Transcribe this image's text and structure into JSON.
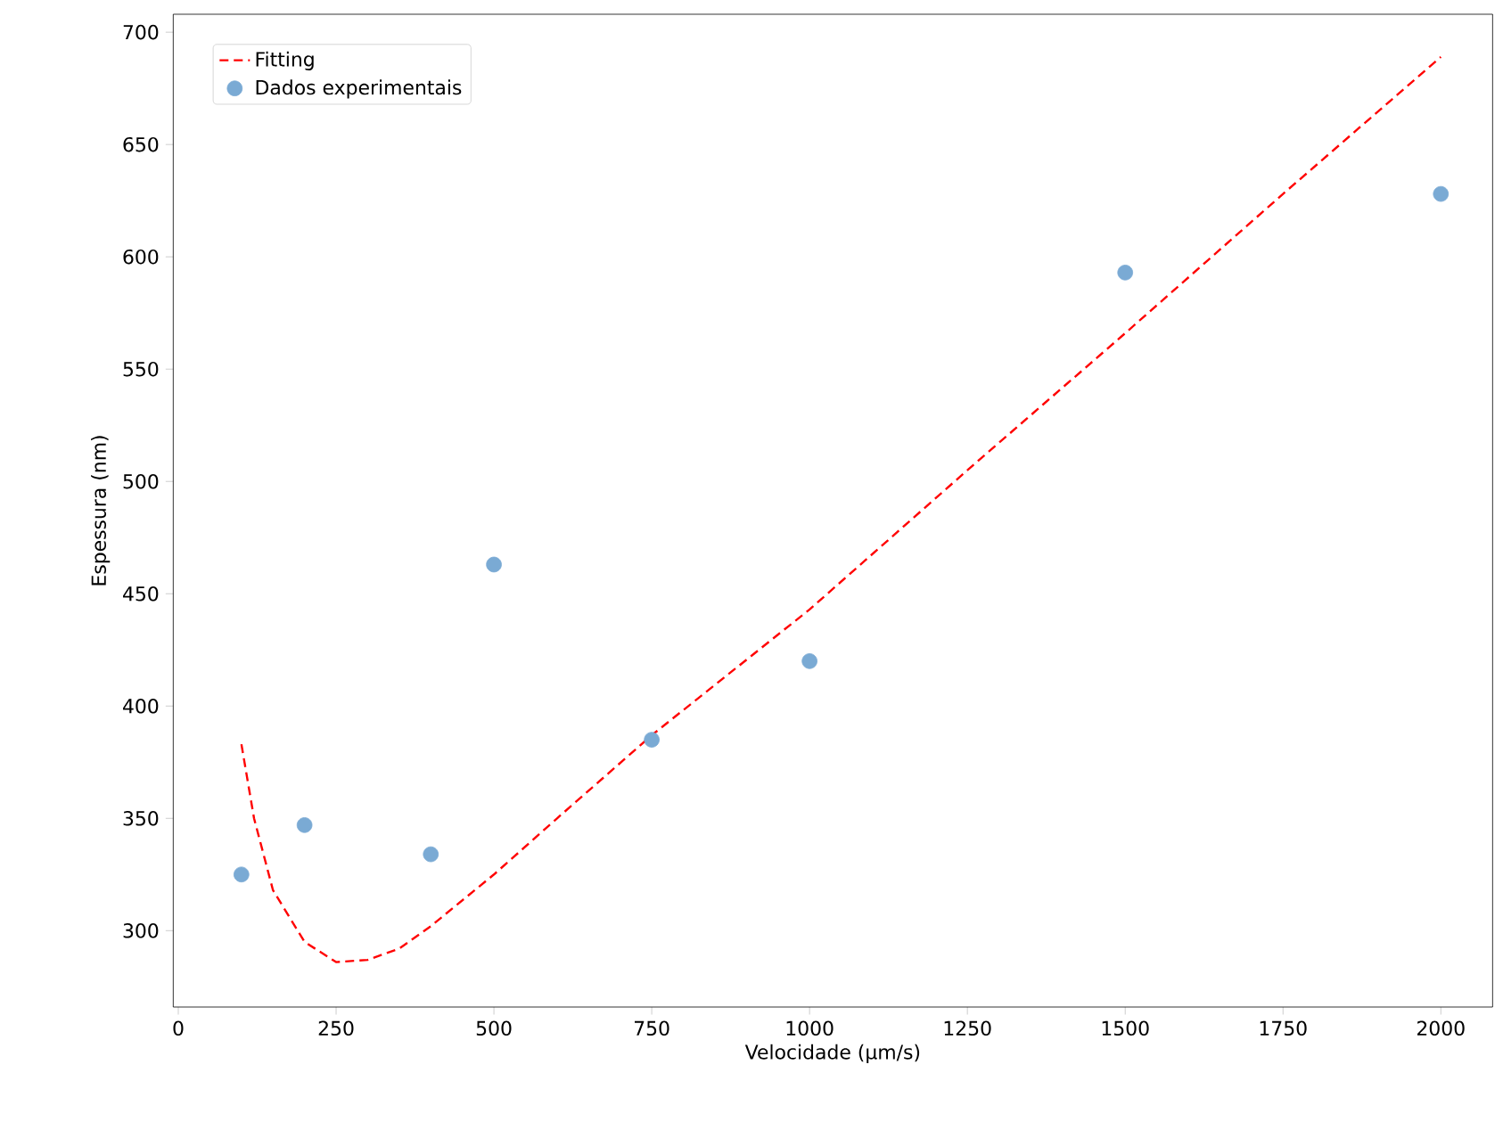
{
  "chart_data": {
    "type": "scatter",
    "xlabel": "Velocidade (µm/s)",
    "ylabel": "Espessura (nm)",
    "xlim": [
      -8,
      2082
    ],
    "ylim": [
      266,
      708
    ],
    "xticks": [
      0,
      250,
      500,
      750,
      1000,
      1250,
      1500,
      1750,
      2000
    ],
    "yticks": [
      300,
      350,
      400,
      450,
      500,
      550,
      600,
      650,
      700
    ],
    "legend": "top left",
    "series": [
      {
        "name": "Fitting",
        "type": "line",
        "line_style": "dashed",
        "marker": "none",
        "color": "#ff0000",
        "x": [
          100,
          120,
          150,
          200,
          250,
          300,
          350,
          400,
          500,
          600,
          750,
          1000,
          1250,
          1500,
          1750,
          2000
        ],
        "values": [
          383,
          350,
          318,
          295,
          286,
          287,
          292,
          302,
          325,
          350,
          387,
          443,
          505,
          566,
          628,
          689
        ]
      },
      {
        "name": "Dados experimentais",
        "marker": "circle",
        "color": "#7aaad4",
        "x": [
          100,
          200,
          400,
          500,
          750,
          1000,
          1500,
          2000
        ],
        "values": [
          325,
          347,
          334,
          463,
          385,
          420,
          593,
          628
        ]
      }
    ]
  }
}
